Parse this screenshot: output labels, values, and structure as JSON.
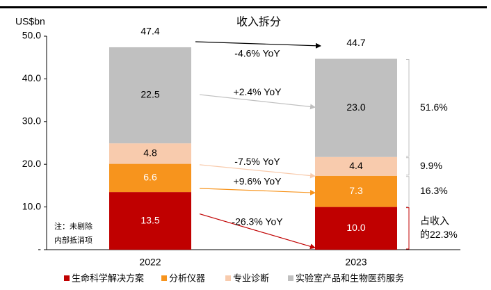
{
  "chart_data": {
    "type": "stacked-bar",
    "title": "收入拆分",
    "y_label": "US$bn",
    "categories": [
      "2022",
      "2023"
    ],
    "series": [
      {
        "name": "生命科学解决方案",
        "color": "#c00000",
        "values": [
          13.5,
          10.0
        ],
        "value_labels": [
          "13.5",
          "10.0"
        ]
      },
      {
        "name": "分析仪器",
        "color": "#f7941d",
        "values": [
          6.6,
          7.3
        ]
      },
      {
        "name": "专业诊断",
        "color": "#f8cbad",
        "values": [
          4.8,
          4.4
        ]
      },
      {
        "name": "实验室产品和生物医药服务",
        "color": "#c0c0c0",
        "values": [
          22.5,
          23.0
        ],
        "value_labels": [
          "22.5",
          "23.0"
        ]
      }
    ],
    "totals": [
      47.4,
      44.7
    ],
    "total_yoy": "-4.6% YoY",
    "series_yoy": [
      "-26.3% YoY",
      "+9.6% YoY",
      "-7.5% YoY",
      "+2.4% YoY"
    ],
    "shares": [
      [
        "占收入",
        "的22.3%"
      ],
      [
        "16.3%"
      ],
      [
        "9.9%"
      ],
      [
        "51.6%"
      ]
    ],
    "note": [
      "注：未剔除",
      "内部抵消项"
    ],
    "ylim": [
      0,
      50
    ],
    "yticks": [
      {
        "value": 0,
        "label": "-"
      },
      {
        "value": 10,
        "label": "10.0"
      },
      {
        "value": 20,
        "label": "20.0"
      },
      {
        "value": 30,
        "label": "30.0"
      },
      {
        "value": 40,
        "label": "40.0"
      },
      {
        "value": 50,
        "label": "50.0"
      }
    ]
  }
}
